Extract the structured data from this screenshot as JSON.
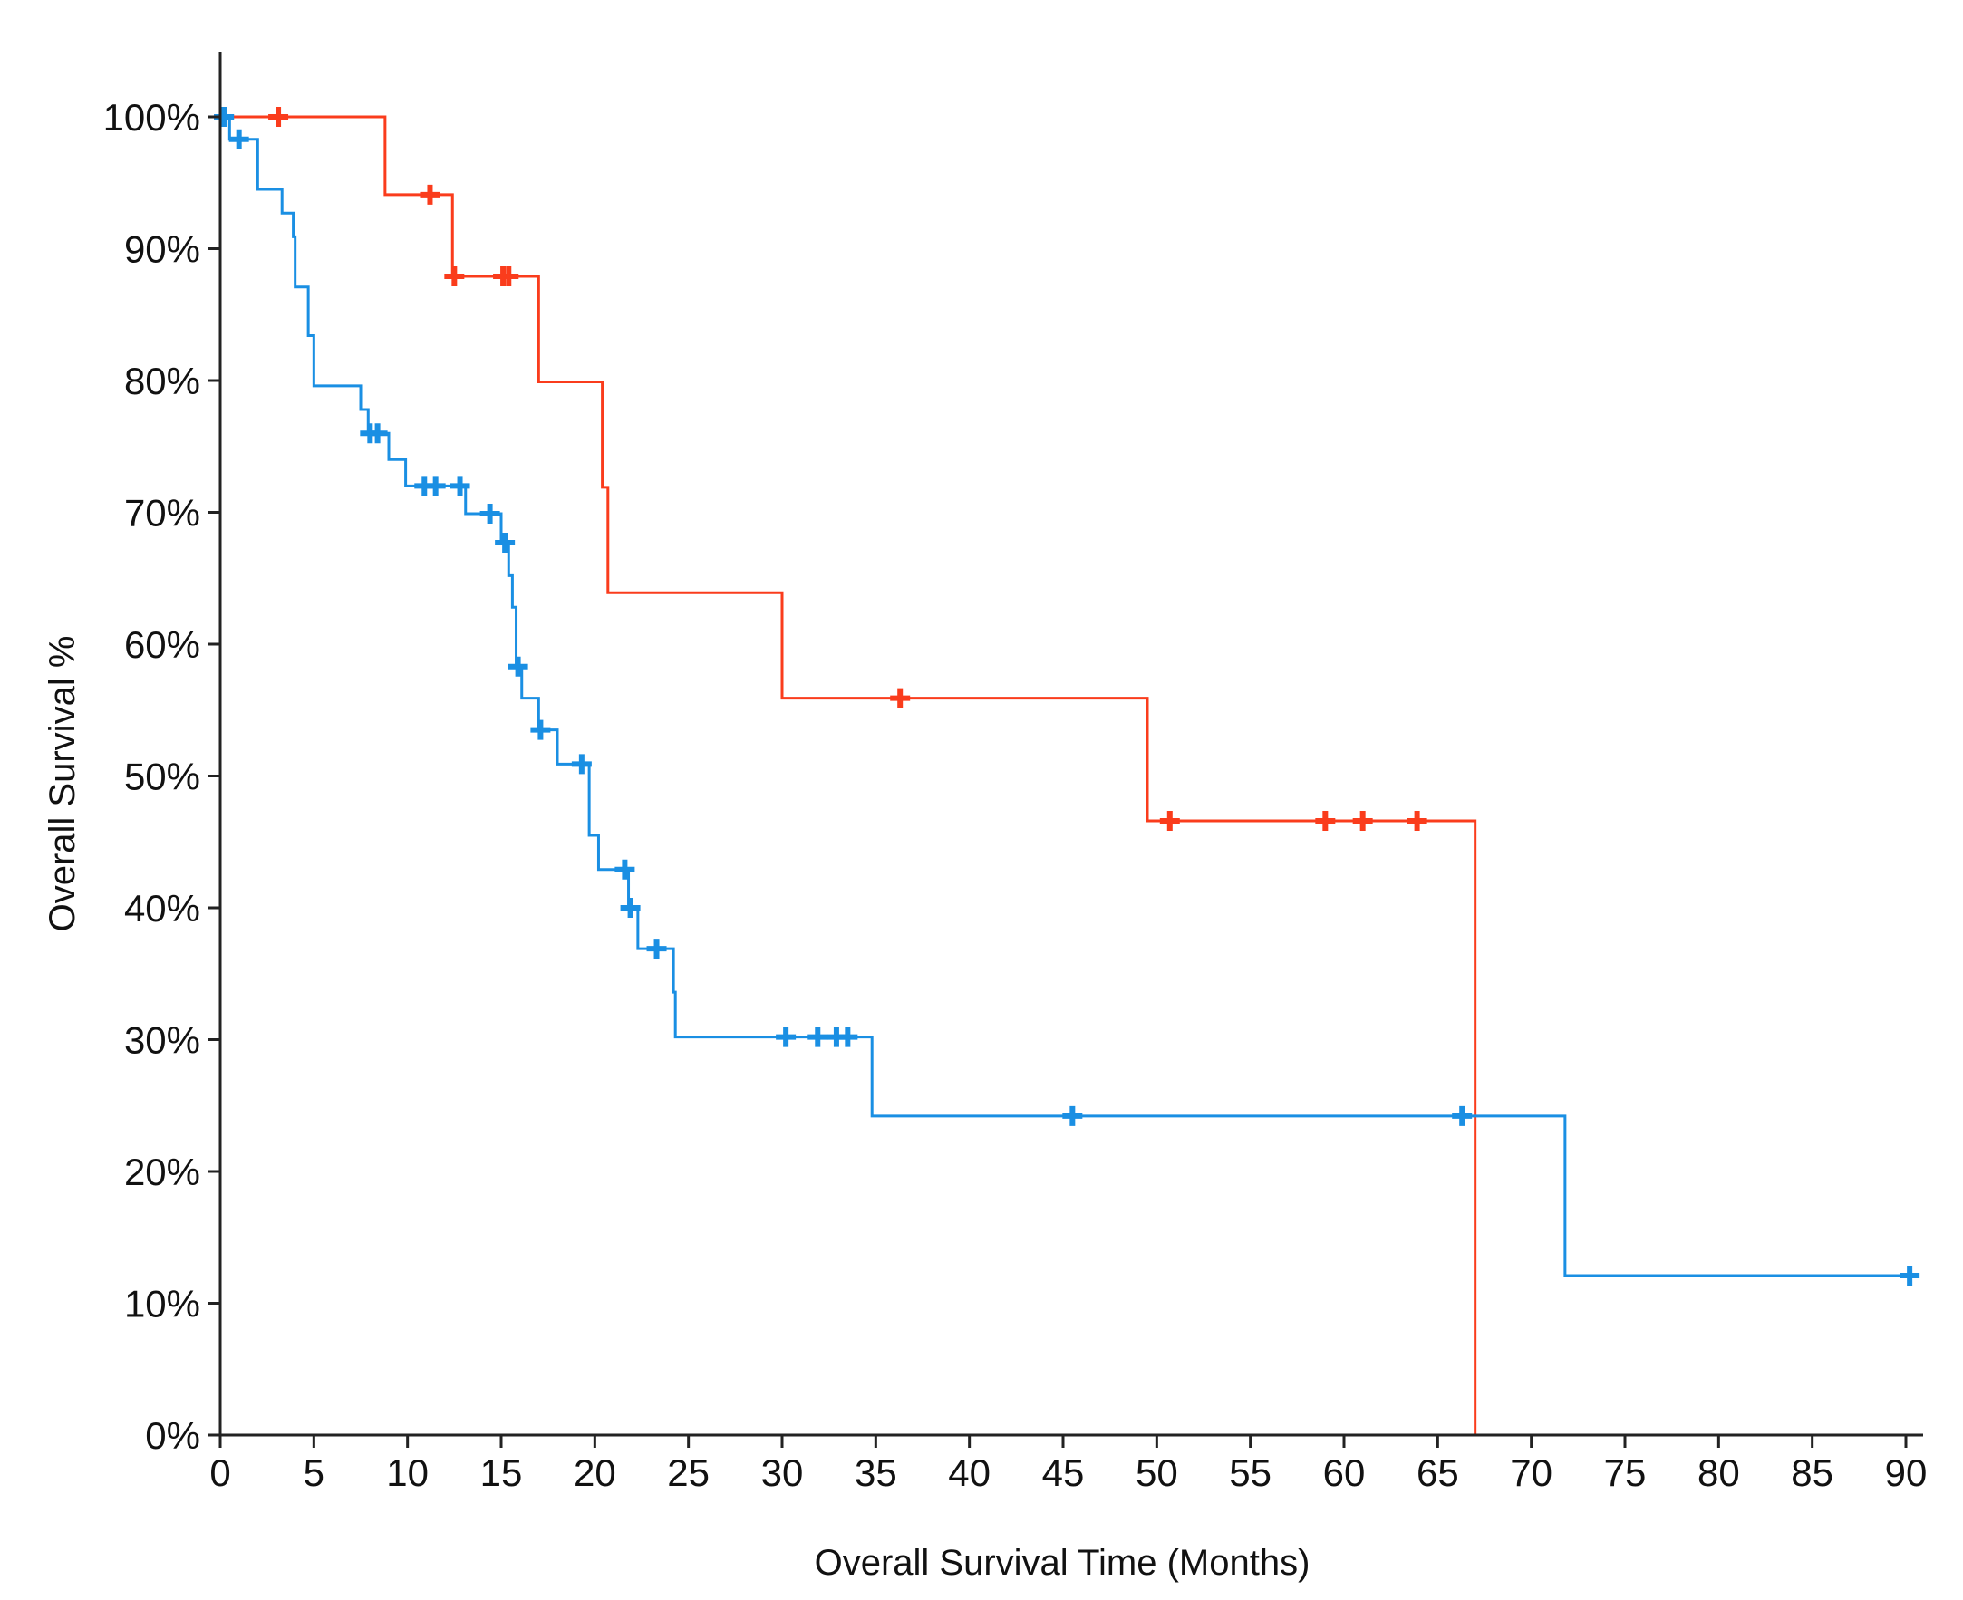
{
  "chart_data": {
    "type": "line",
    "subtype": "kaplan-meier-step",
    "title": "",
    "xlabel": "Overall Survival Time (Months)",
    "ylabel": "Overall Survival %",
    "xlim": [
      0,
      91
    ],
    "ylim": [
      0,
      100
    ],
    "grid": false,
    "x_ticks": [
      0,
      5,
      10,
      15,
      20,
      25,
      30,
      35,
      40,
      45,
      50,
      55,
      60,
      65,
      70,
      75,
      80,
      85,
      90
    ],
    "x_tick_labels": [
      "0",
      "5",
      "10",
      "15",
      "20",
      "25",
      "30",
      "35",
      "40",
      "45",
      "50",
      "55",
      "60",
      "65",
      "70",
      "75",
      "80",
      "85",
      "90"
    ],
    "y_ticks": [
      0,
      10,
      20,
      30,
      40,
      50,
      60,
      70,
      80,
      90,
      100
    ],
    "y_tick_labels": [
      "0%",
      "10%",
      "20%",
      "30%",
      "40%",
      "50%",
      "60%",
      "70%",
      "80%",
      "90%",
      "100%"
    ],
    "series": [
      {
        "name": "red",
        "color": "#fa3c1c",
        "steps": [
          [
            0,
            100
          ],
          [
            8.8,
            94.1
          ],
          [
            12.4,
            87.9
          ],
          [
            17.0,
            79.9
          ],
          [
            20.4,
            71.9
          ],
          [
            20.7,
            63.9
          ],
          [
            30.0,
            55.9
          ],
          [
            49.5,
            46.6
          ],
          [
            67.0,
            0
          ]
        ],
        "end_x": 67.0,
        "censored": [
          [
            0.2,
            100
          ],
          [
            3.1,
            100
          ],
          [
            11.2,
            94.1
          ],
          [
            12.5,
            87.9
          ],
          [
            15.1,
            87.9
          ],
          [
            15.4,
            87.9
          ],
          [
            36.3,
            55.9
          ],
          [
            50.7,
            46.6
          ],
          [
            59.0,
            46.6
          ],
          [
            61.0,
            46.6
          ],
          [
            63.9,
            46.6
          ]
        ]
      },
      {
        "name": "blue",
        "color": "#1a8fe3",
        "steps": [
          [
            0,
            100
          ],
          [
            0.5,
            98.3
          ],
          [
            2.0,
            94.5
          ],
          [
            3.3,
            92.7
          ],
          [
            3.9,
            90.9
          ],
          [
            4.0,
            87.1
          ],
          [
            4.7,
            83.4
          ],
          [
            5.0,
            79.6
          ],
          [
            7.5,
            77.8
          ],
          [
            7.9,
            76.0
          ],
          [
            9.0,
            74.0
          ],
          [
            9.9,
            72.0
          ],
          [
            13.1,
            69.9
          ],
          [
            15.0,
            67.7
          ],
          [
            15.4,
            65.2
          ],
          [
            15.6,
            62.8
          ],
          [
            15.8,
            58.3
          ],
          [
            16.1,
            55.9
          ],
          [
            17.0,
            53.5
          ],
          [
            18.0,
            50.9
          ],
          [
            19.7,
            45.5
          ],
          [
            20.2,
            42.9
          ],
          [
            21.8,
            40.0
          ],
          [
            22.3,
            36.9
          ],
          [
            24.2,
            33.6
          ],
          [
            24.3,
            30.2
          ],
          [
            34.8,
            24.2
          ],
          [
            71.8,
            12.1
          ]
        ],
        "end_x": 90.2,
        "censored": [
          [
            0.2,
            100
          ],
          [
            1.0,
            98.3
          ],
          [
            8.0,
            76.0
          ],
          [
            8.4,
            76.0
          ],
          [
            10.9,
            72.0
          ],
          [
            11.5,
            72.0
          ],
          [
            12.8,
            72.0
          ],
          [
            14.4,
            69.9
          ],
          [
            15.2,
            67.7
          ],
          [
            15.9,
            58.3
          ],
          [
            17.1,
            53.5
          ],
          [
            19.3,
            50.9
          ],
          [
            21.6,
            42.9
          ],
          [
            21.9,
            40.0
          ],
          [
            23.3,
            36.9
          ],
          [
            30.2,
            30.2
          ],
          [
            31.9,
            30.2
          ],
          [
            32.9,
            30.2
          ],
          [
            33.5,
            30.2
          ],
          [
            45.5,
            24.2
          ],
          [
            66.3,
            24.2
          ],
          [
            90.2,
            12.1
          ]
        ]
      }
    ]
  }
}
